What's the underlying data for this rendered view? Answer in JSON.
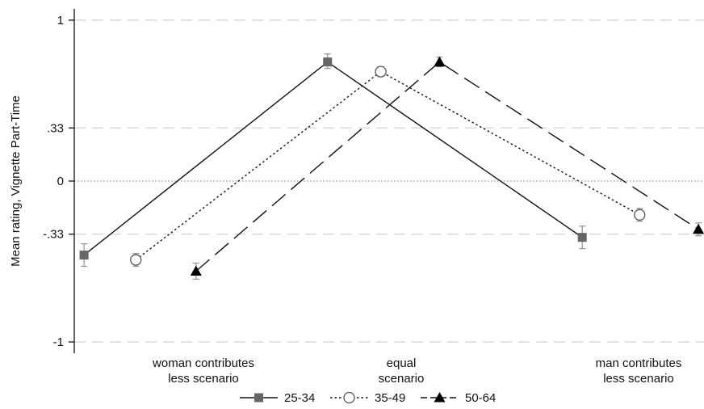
{
  "chart_data": {
    "type": "line",
    "title": "",
    "xlabel": "",
    "ylabel": "Mean rating, Vignette Part-Time",
    "ylim": [
      -1.07,
      1.07
    ],
    "yticks": [
      {
        "value": 1,
        "label": "1"
      },
      {
        "value": 0.33,
        "label": ".33"
      },
      {
        "value": 0,
        "label": "0"
      },
      {
        "value": -0.33,
        "label": "-.33"
      },
      {
        "value": -1,
        "label": "-1"
      }
    ],
    "categories": [
      {
        "lines": [
          "woman contributes",
          "less scenario"
        ]
      },
      {
        "lines": [
          "equal",
          "scenario"
        ]
      },
      {
        "lines": [
          "man contributes",
          "less scenario"
        ]
      }
    ],
    "grid": true,
    "legend_position": "bottom",
    "series": [
      {
        "name": "25-34",
        "marker": "square",
        "line_style": "solid",
        "color": "#111111",
        "marker_color": "#666666",
        "x": [
          -0.28,
          1.46,
          3.28
        ],
        "values": [
          -0.46,
          0.74,
          -0.35
        ],
        "ci": [
          [
            -0.53,
            -0.39
          ],
          [
            0.7,
            0.79
          ],
          [
            -0.42,
            -0.28
          ]
        ]
      },
      {
        "name": "35-49",
        "marker": "circle-open",
        "line_style": "dotted",
        "color": "#111111",
        "marker_color": "#555555",
        "x": [
          0.09,
          1.84,
          3.69
        ],
        "values": [
          -0.49,
          0.68,
          -0.21
        ],
        "ci": [
          [
            -0.53,
            -0.45
          ],
          [
            0.65,
            0.71
          ],
          [
            -0.25,
            -0.17
          ]
        ]
      },
      {
        "name": "50-64",
        "marker": "triangle",
        "line_style": "dashed",
        "color": "#111111",
        "marker_color": "#000000",
        "x": [
          0.52,
          2.26,
          4.11
        ],
        "values": [
          -0.56,
          0.74,
          -0.3
        ],
        "ci": [
          [
            -0.61,
            -0.51
          ],
          [
            0.71,
            0.77
          ],
          [
            -0.34,
            -0.26
          ]
        ]
      }
    ]
  }
}
